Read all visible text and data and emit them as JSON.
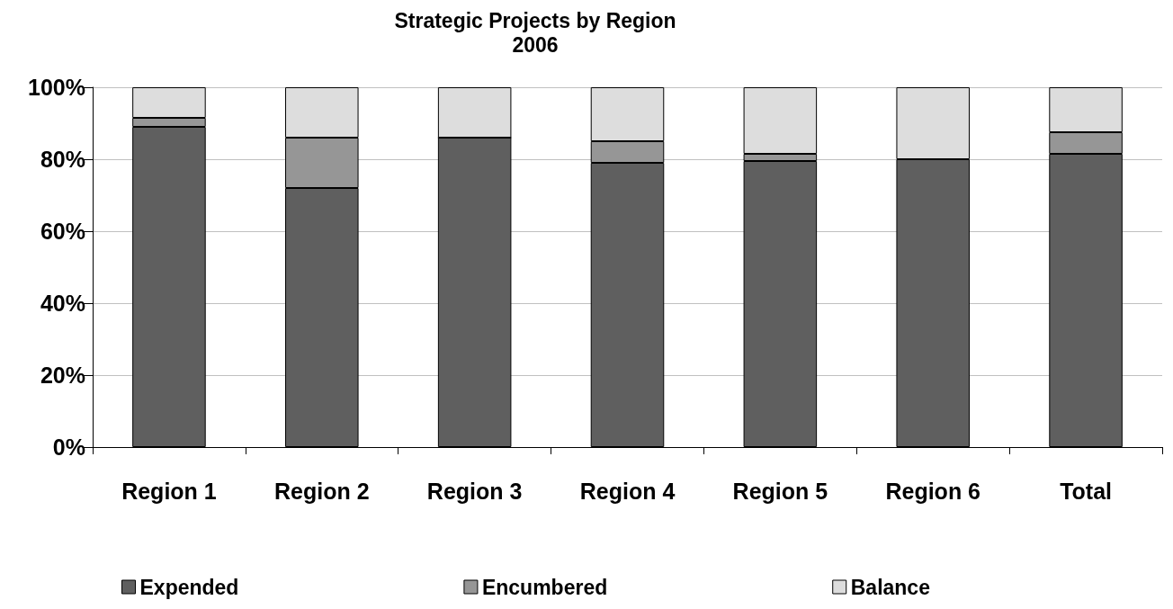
{
  "chart_data": {
    "type": "bar",
    "title": "Strategic Projects by Region\n2006",
    "stacked": true,
    "categories": [
      "Region 1",
      "Region 2",
      "Region 3",
      "Region 4",
      "Region 5",
      "Region 6",
      "Total"
    ],
    "series": [
      {
        "name": "Expended",
        "color": "#5f5f5f",
        "values": [
          89,
          72,
          86,
          79,
          79.5,
          80,
          81.5
        ]
      },
      {
        "name": "Encumbered",
        "color": "#969696",
        "values": [
          2.5,
          14,
          0,
          6,
          2,
          null,
          6
        ]
      },
      {
        "name": "Balance",
        "color": "#dddddd",
        "values": [
          8.5,
          14,
          14,
          15,
          18.5,
          20,
          12.5
        ]
      }
    ],
    "ylim": [
      0,
      100
    ],
    "yticks": [
      {
        "value": 0,
        "label": "0%"
      },
      {
        "value": 20,
        "label": "20%"
      },
      {
        "value": 40,
        "label": "40%"
      },
      {
        "value": 60,
        "label": "60%"
      },
      {
        "value": 80,
        "label": "80%"
      },
      {
        "value": 100,
        "label": "100%"
      }
    ],
    "grid": "y",
    "legend": "bottom"
  }
}
